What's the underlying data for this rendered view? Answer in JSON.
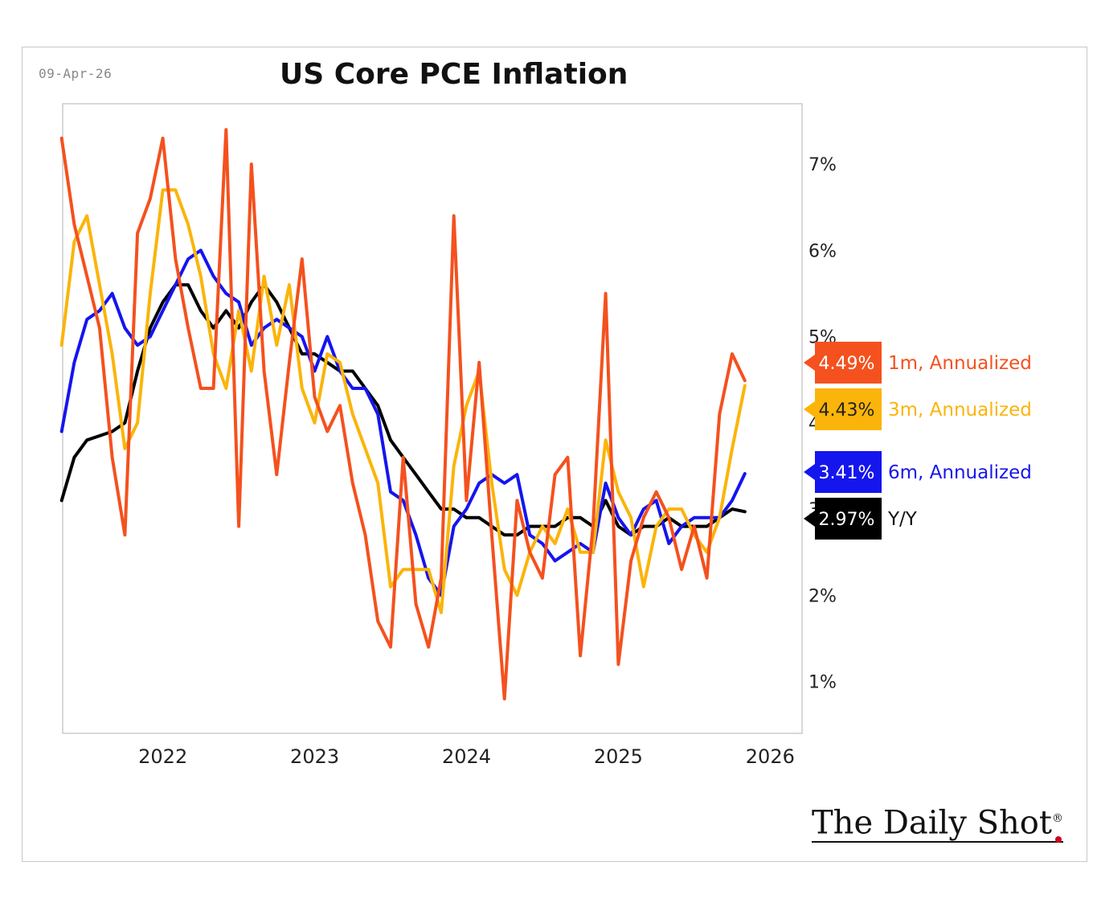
{
  "header": {
    "date": "09-Apr-26",
    "title": "US Core PCE Inflation"
  },
  "brand": {
    "name": "The Daily Shot",
    "reg": "®"
  },
  "colors": {
    "m1": "#f4511e",
    "m3": "#fbb40a",
    "m6": "#1515ee",
    "yoy": "#000000",
    "plot_border": "#cccccc"
  },
  "chart_data": {
    "type": "line",
    "title": "US Core PCE Inflation",
    "xlabel": "",
    "ylabel": "",
    "xlim": [
      2021.34,
      2026.21
    ],
    "ylim": [
      0.4,
      7.7
    ],
    "x_ticks": [
      "2022",
      "2023",
      "2024",
      "2025",
      "2026"
    ],
    "x_tick_values": [
      2022,
      2023,
      2024,
      2025,
      2026
    ],
    "y_ticks": [
      "1%",
      "2%",
      "3%",
      "4%",
      "5%",
      "6%",
      "7%"
    ],
    "y_tick_values": [
      1,
      2,
      3,
      4,
      5,
      6,
      7
    ],
    "x_start": 2021.333,
    "x_step_months": 1,
    "grid": false,
    "legend": "right-end labels",
    "series": [
      {
        "key": "m1",
        "name": "1m, Annualized",
        "last_label": "4.49%",
        "values": [
          7.3,
          6.3,
          5.7,
          5.1,
          3.6,
          2.7,
          6.2,
          6.6,
          7.3,
          5.9,
          5.1,
          4.4,
          4.4,
          7.4,
          2.8,
          7.0,
          4.6,
          3.4,
          4.7,
          5.9,
          4.3,
          3.9,
          4.2,
          3.3,
          2.7,
          1.7,
          1.4,
          3.6,
          1.9,
          1.4,
          2.2,
          6.4,
          3.1,
          4.7,
          2.7,
          0.8,
          3.1,
          2.5,
          2.2,
          3.4,
          3.6,
          1.3,
          2.8,
          5.5,
          1.2,
          2.4,
          2.9,
          3.2,
          2.9,
          2.3,
          2.8,
          2.2,
          4.1,
          4.8,
          4.49
        ]
      },
      {
        "key": "m3",
        "name": "3m, Annualized",
        "last_label": "4.43%",
        "values": [
          4.9,
          6.1,
          6.4,
          5.6,
          4.8,
          3.7,
          4.0,
          5.5,
          6.7,
          6.7,
          6.3,
          5.7,
          4.8,
          4.4,
          5.3,
          4.6,
          5.7,
          4.9,
          5.6,
          4.4,
          4.0,
          4.8,
          4.7,
          4.1,
          3.7,
          3.3,
          2.1,
          2.3,
          2.3,
          2.3,
          1.8,
          3.5,
          4.2,
          4.6,
          3.3,
          2.3,
          2.0,
          2.5,
          2.8,
          2.6,
          3.0,
          2.5,
          2.5,
          3.8,
          3.2,
          2.9,
          2.1,
          2.8,
          3.0,
          3.0,
          2.7,
          2.5,
          2.9,
          3.7,
          4.43
        ]
      },
      {
        "key": "m6",
        "name": "6m, Annualized",
        "last_label": "3.41%",
        "values": [
          3.9,
          4.7,
          5.2,
          5.3,
          5.5,
          5.1,
          4.9,
          5.0,
          5.3,
          5.6,
          5.9,
          6.0,
          5.7,
          5.5,
          5.4,
          4.9,
          5.1,
          5.2,
          5.1,
          5.0,
          4.6,
          5.0,
          4.6,
          4.4,
          4.4,
          4.1,
          3.2,
          3.1,
          2.7,
          2.2,
          2.0,
          2.8,
          3.0,
          3.3,
          3.4,
          3.3,
          3.4,
          2.7,
          2.6,
          2.4,
          2.5,
          2.6,
          2.5,
          3.3,
          2.9,
          2.7,
          3.0,
          3.1,
          2.6,
          2.8,
          2.9,
          2.9,
          2.9,
          3.1,
          3.41
        ]
      },
      {
        "key": "yoy",
        "name": "Y/Y",
        "last_label": "2.97%",
        "values": [
          3.1,
          3.6,
          3.8,
          3.85,
          3.9,
          4.0,
          4.6,
          5.1,
          5.4,
          5.6,
          5.6,
          5.3,
          5.1,
          5.3,
          5.1,
          5.4,
          5.6,
          5.4,
          5.1,
          4.8,
          4.8,
          4.7,
          4.6,
          4.6,
          4.4,
          4.2,
          3.8,
          3.6,
          3.4,
          3.2,
          3.0,
          3.0,
          2.9,
          2.9,
          2.8,
          2.7,
          2.7,
          2.8,
          2.8,
          2.8,
          2.9,
          2.9,
          2.8,
          3.1,
          2.8,
          2.7,
          2.8,
          2.8,
          2.9,
          2.8,
          2.8,
          2.8,
          2.9,
          3.0,
          2.97
        ]
      }
    ]
  }
}
